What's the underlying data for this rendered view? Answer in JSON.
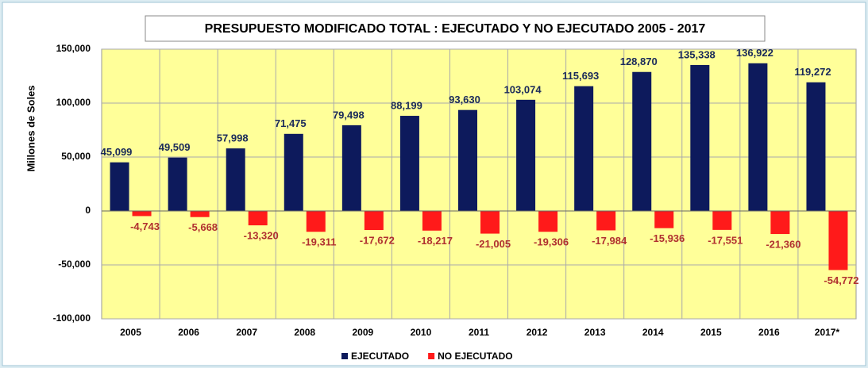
{
  "chart_data": {
    "type": "bar",
    "title": "PRESUPUESTO MODIFICADO TOTAL : EJECUTADO Y NO EJECUTADO 2005  - 2017",
    "y_label": "Millones de Soles",
    "categories": [
      "2005",
      "2006",
      "2007",
      "2008",
      "2009",
      "2010",
      "2011",
      "2012",
      "2013",
      "2014",
      "2015",
      "2016",
      "2017*"
    ],
    "series": [
      {
        "name": "EJECUTADO",
        "color": "#0d1a5c",
        "values": [
          45099,
          49509,
          57998,
          71475,
          79498,
          88199,
          93630,
          103074,
          115693,
          128870,
          135338,
          136922,
          119272
        ],
        "value_labels": [
          "45,099",
          "49,509",
          "57,998",
          "71,475",
          "79,498",
          "88,199",
          "93,630",
          "103,074",
          "115,693",
          "128,870",
          "135,338",
          "136,922",
          "119,272"
        ]
      },
      {
        "name": "NO EJECUTADO",
        "color": "#ff1a1a",
        "values": [
          -4743,
          -5668,
          -13320,
          -19311,
          -17672,
          -18217,
          -21005,
          -19306,
          -17984,
          -15936,
          -17551,
          -21360,
          -54772
        ],
        "value_labels": [
          "-4,743",
          "-5,668",
          "-13,320",
          "-19,311",
          "-17,672",
          "-18,217",
          "-21,005",
          "-19,306",
          "-17,984",
          "-15,936",
          "-17,551",
          "-21,360",
          "-54,772"
        ]
      }
    ],
    "ylim": [
      -100000,
      150000
    ],
    "yticks": [
      {
        "value": -100000,
        "label": "-100,000"
      },
      {
        "value": -50000,
        "label": "-50,000"
      },
      0,
      {
        "value": 50000,
        "label": "50,000"
      },
      {
        "value": 100000,
        "label": "100,000"
      },
      {
        "value": 150000,
        "label": "150,000"
      }
    ],
    "grid": true,
    "legend": "bottom"
  }
}
